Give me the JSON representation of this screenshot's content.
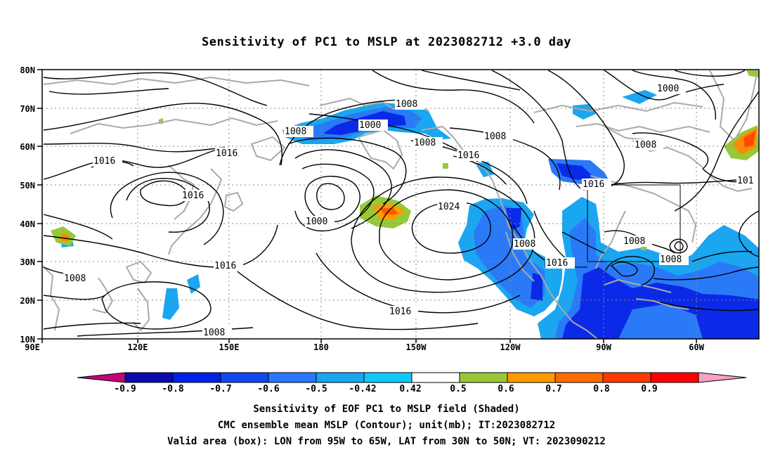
{
  "title": "Sensitivity of PC1 to MSLP at 2023082712 +3.0 day",
  "lat_labels": [
    "80N",
    "70N",
    "60N",
    "50N",
    "40N",
    "30N",
    "20N",
    "10N"
  ],
  "lon_labels": [
    "90E",
    "120E",
    "150E",
    "180",
    "150W",
    "120W",
    "90W",
    "60W"
  ],
  "contour_labels": [
    "1016",
    "1016",
    "1016",
    "1008",
    "1008",
    "1016",
    "1008",
    "1000",
    "1000",
    "1008",
    "1008",
    "1016",
    "1024",
    "1008",
    "1016",
    "1016",
    "1008",
    "1008",
    "1000",
    "1008",
    "1016",
    "1008",
    "101",
    "1008",
    "1008"
  ],
  "colorbar": {
    "labels": [
      "-0.9",
      "-0.8",
      "-0.7",
      "-0.6",
      "-0.5",
      "-0.42",
      "0.42",
      "0.5",
      "0.6",
      "0.7",
      "0.8",
      "0.9"
    ],
    "colors": [
      "#c0067a",
      "#0a0ab0",
      "#0020e8",
      "#1048f0",
      "#2878ff",
      "#1aa6f0",
      "#10c8f8",
      "#ffffff",
      "#98c838",
      "#ff9a00",
      "#ff6a00",
      "#ff3a00",
      "#ff0000",
      "#f8a0c8"
    ]
  },
  "captions": [
    "Sensitivity of EOF PC1 to MSLP field (Shaded)",
    "CMC ensemble mean MSLP (Contour); unit(mb); IT:2023082712",
    "Valid area (box): LON from 95W to 65W, LAT from 30N to 50N; VT: 2023090212"
  ],
  "map": {
    "domain": {
      "lon_min": 90,
      "lon_max": 325,
      "lat_min": 10,
      "lat_max": 80
    },
    "valid_box": {
      "lon_w": "95W",
      "lon_e": "65W",
      "lat_s": "30N",
      "lat_n": "50N"
    },
    "shading_colors": {
      "blue_dark": "#0a2ae8",
      "blue_mid": "#2a7af8",
      "blue_light": "#18b8f8",
      "green": "#98c838",
      "orange": "#ff8a00",
      "red": "#ff4a00"
    }
  }
}
